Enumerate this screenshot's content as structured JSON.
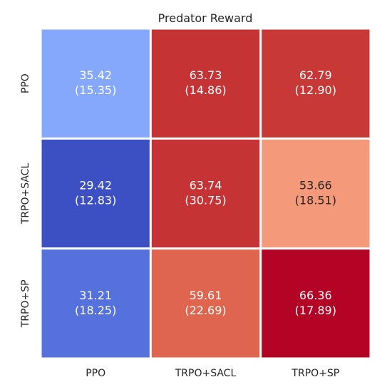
{
  "chart_data": {
    "type": "heatmap",
    "title": "Predator Reward",
    "xlabel": "",
    "ylabel": "",
    "x_categories": [
      "PPO",
      "TRPO+SACL",
      "TRPO+SP"
    ],
    "y_categories": [
      "PPO",
      "TRPO+SACL",
      "TRPO+SP"
    ],
    "values": [
      [
        35.42,
        63.73,
        62.79
      ],
      [
        29.42,
        63.74,
        53.66
      ],
      [
        31.21,
        59.61,
        66.36
      ]
    ],
    "std": [
      [
        15.35,
        14.86,
        12.9
      ],
      [
        12.83,
        30.75,
        18.51
      ],
      [
        18.25,
        22.69,
        17.89
      ]
    ],
    "colormap": "coolwarm",
    "cell_colors": [
      [
        "#85a8fc",
        "#c53334",
        "#c83836"
      ],
      [
        "#3d50c3",
        "#c53334",
        "#f49a7b"
      ],
      [
        "#5571dc",
        "#e0654f",
        "#b40426"
      ]
    ],
    "text_colors": [
      [
        "#ffffff",
        "#ffffff",
        "#ffffff"
      ],
      [
        "#ffffff",
        "#ffffff",
        "#262626"
      ],
      [
        "#ffffff",
        "#ffffff",
        "#ffffff"
      ]
    ],
    "grid": false,
    "colorbar": false,
    "cell_text": [
      [
        [
          "35.42",
          "(15.35)"
        ],
        [
          "63.73",
          "(14.86)"
        ],
        [
          "62.79",
          "(12.90)"
        ]
      ],
      [
        [
          "29.42",
          "(12.83)"
        ],
        [
          "63.74",
          "(30.75)"
        ],
        [
          "53.66",
          "(18.51)"
        ]
      ],
      [
        [
          "31.21",
          "(18.25)"
        ],
        [
          "59.61",
          "(22.69)"
        ],
        [
          "66.36",
          "(17.89)"
        ]
      ]
    ]
  }
}
